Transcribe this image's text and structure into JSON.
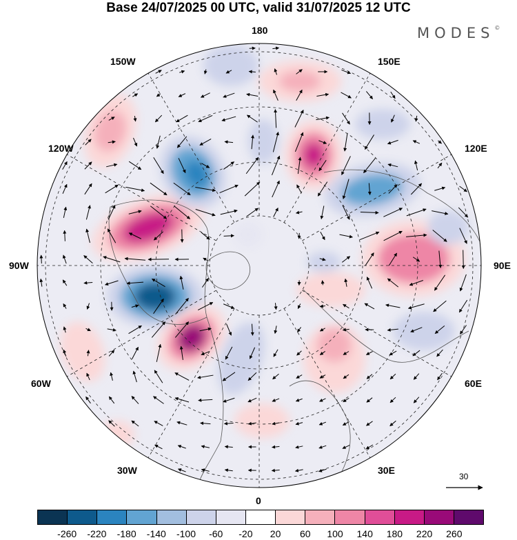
{
  "title": "Base 24/07/2025 00 UTC, valid 31/07/2025 12 UTC",
  "brand": "MODES",
  "brand_mark": "©",
  "longitude_labels": {
    "top": "180",
    "bottom": "0",
    "left": "90W",
    "right": "90E",
    "nw_upper": "150W",
    "nw_lower": "120W",
    "ne_upper": "150E",
    "ne_lower": "120E",
    "sw_upper": "60W",
    "sw_lower": "30W",
    "se_upper": "60E",
    "se_lower": "30E"
  },
  "vector_reference": {
    "label": "30"
  },
  "colorbar": {
    "colors": [
      "#0b3453",
      "#0e5a8c",
      "#2b84bf",
      "#62a4d2",
      "#a2bedf",
      "#cdd3ea",
      "#e6e6f2",
      "#ffffff",
      "#fbd8d8",
      "#f5b0bb",
      "#ee86a6",
      "#e04e98",
      "#c81a86",
      "#990a78",
      "#5f0a6c"
    ],
    "ticks": [
      "-260",
      "-220",
      "-180",
      "-140",
      "-100",
      "-60",
      "-20",
      "20",
      "60",
      "100",
      "140",
      "180",
      "220",
      "260"
    ]
  },
  "chart_data": {
    "type": "heatmap",
    "projection": "north polar stereographic",
    "title": "Base 24/07/2025 00 UTC, valid 31/07/2025 12 UTC",
    "variable_levels": [
      -260,
      -220,
      -180,
      -140,
      -100,
      -60,
      -20,
      20,
      60,
      100,
      140,
      180,
      220,
      260
    ],
    "reference_vector": 30,
    "anomaly_centers": [
      {
        "name": "positive",
        "lon": "100W",
        "sign": "+",
        "max": 220
      },
      {
        "name": "negative",
        "lon": "75W",
        "sign": "-",
        "max": -200
      },
      {
        "name": "positive",
        "lon": "50W",
        "sign": "+",
        "max": 240
      },
      {
        "name": "positive",
        "lon": "140E",
        "sign": "+",
        "max": 200
      },
      {
        "name": "negative",
        "lon": "125E",
        "sign": "-",
        "max": -140
      },
      {
        "name": "positive",
        "lon": "90E",
        "sign": "+",
        "max": 120
      },
      {
        "name": "negative",
        "lon": "140W",
        "sign": "-",
        "max": -140
      },
      {
        "name": "negative",
        "lon": "170W",
        "sign": "-",
        "max": -100
      },
      {
        "name": "positive",
        "lon": "160E",
        "sign": "+",
        "max": 80
      }
    ]
  }
}
